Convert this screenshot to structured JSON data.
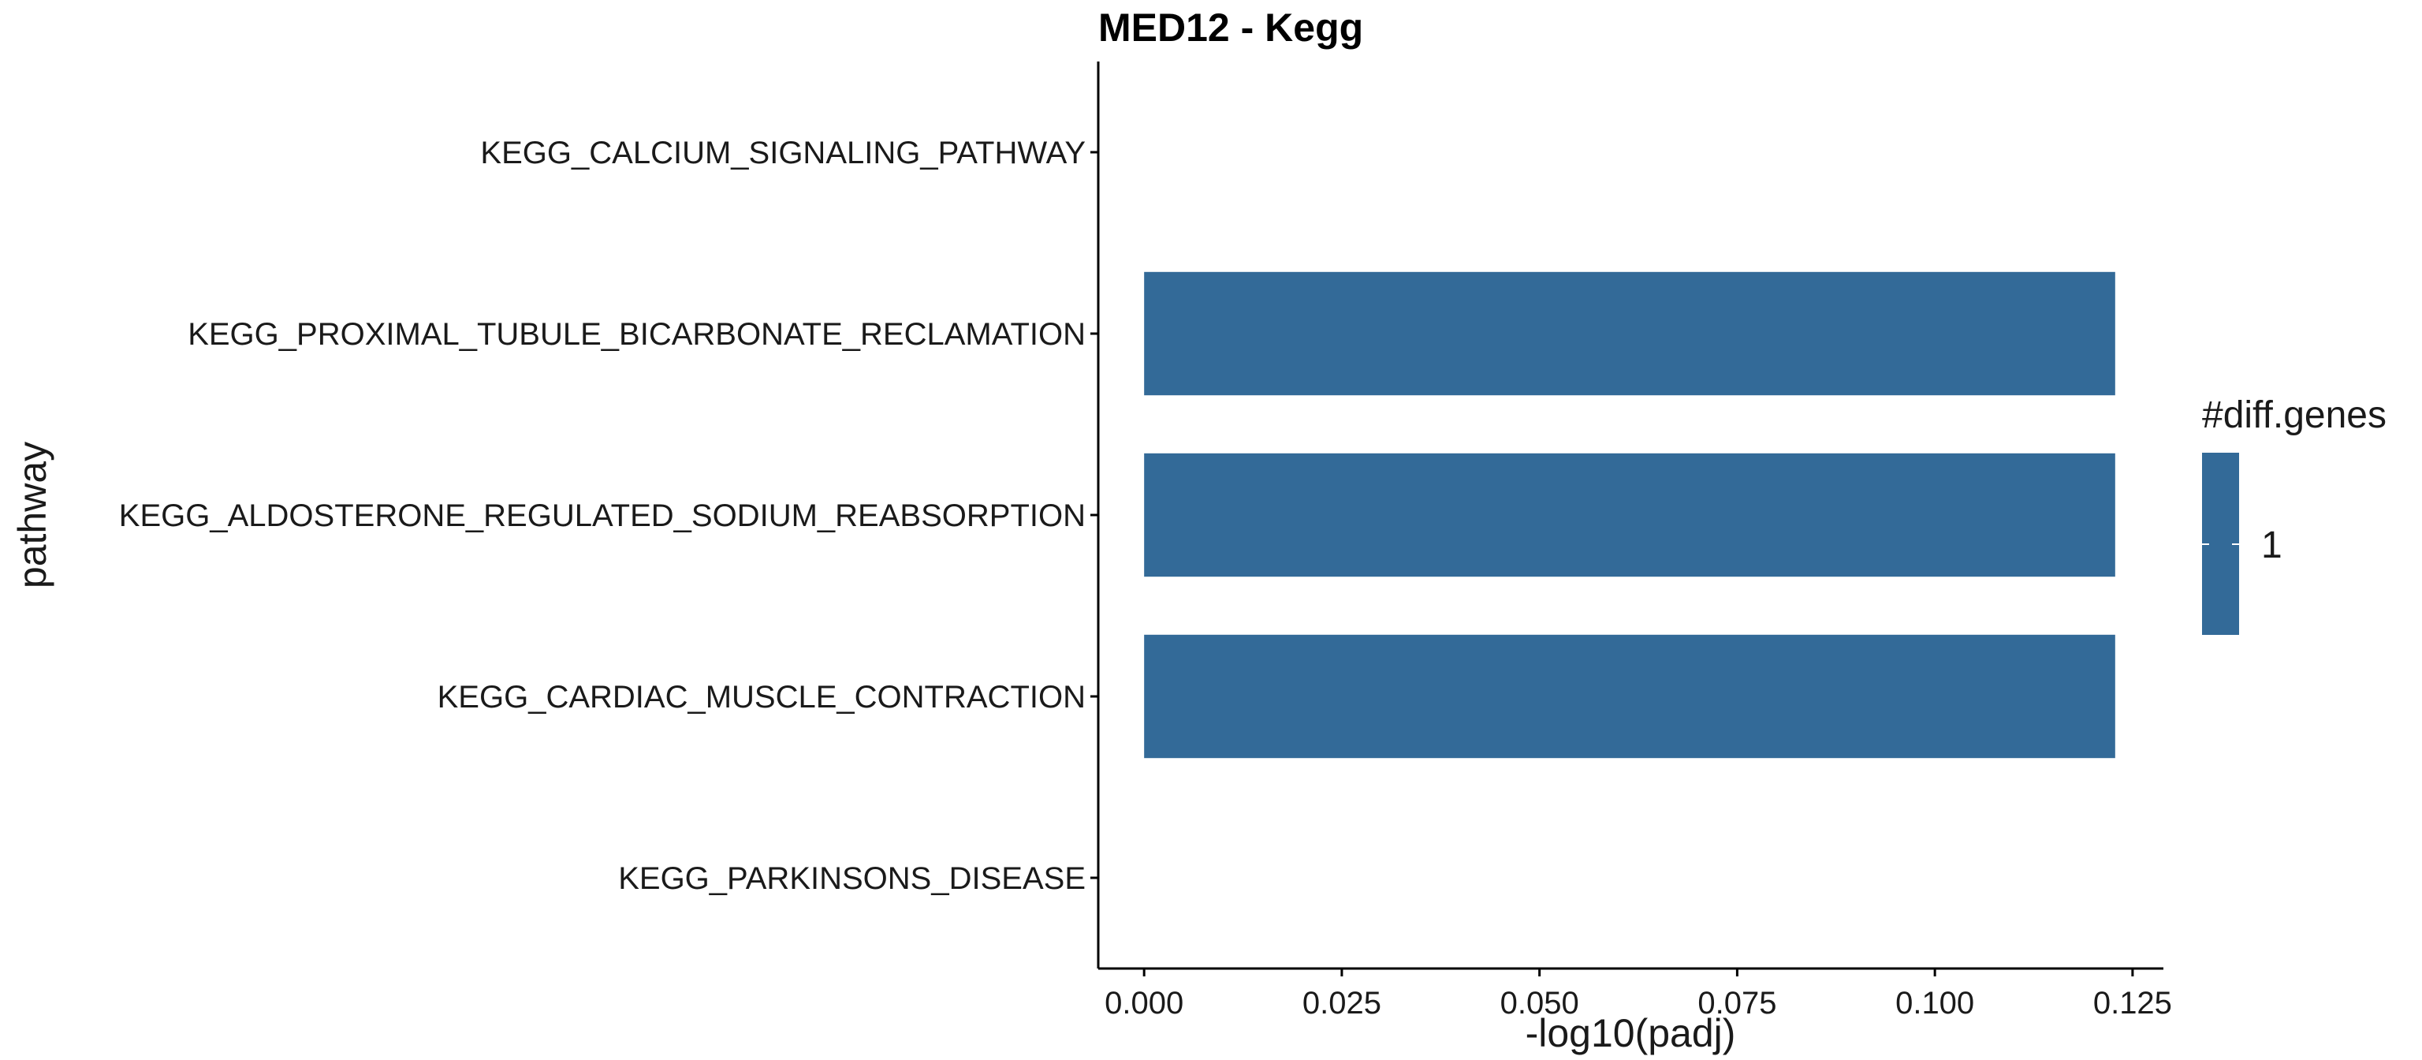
{
  "chart_data": {
    "type": "bar",
    "orientation": "horizontal",
    "title": "MED12 - Kegg",
    "xlabel": "-log10(padj)",
    "ylabel": "pathway",
    "categories": [
      "KEGG_CALCIUM_SIGNALING_PATHWAY",
      "KEGG_PROXIMAL_TUBULE_BICARBONATE_RECLAMATION",
      "KEGG_ALDOSTERONE_REGULATED_SODIUM_REABSORPTION",
      "KEGG_CARDIAC_MUSCLE_CONTRACTION",
      "KEGG_PARKINSONS_DISEASE"
    ],
    "values": [
      0,
      0.1228,
      0.1228,
      0.1228,
      0
    ],
    "xlim": [
      -0.0058,
      0.1289
    ],
    "xticks": [
      0.0,
      0.025,
      0.05,
      0.075,
      0.1,
      0.125
    ],
    "xtick_labels": [
      "0.000",
      "0.025",
      "0.050",
      "0.075",
      "0.100",
      "0.125"
    ],
    "grid": false,
    "legend": {
      "title": "#diff.genes",
      "placement": "right",
      "entries": [
        {
          "label": "1",
          "color": "#336A98"
        }
      ]
    },
    "bar_color": "#336A98"
  }
}
